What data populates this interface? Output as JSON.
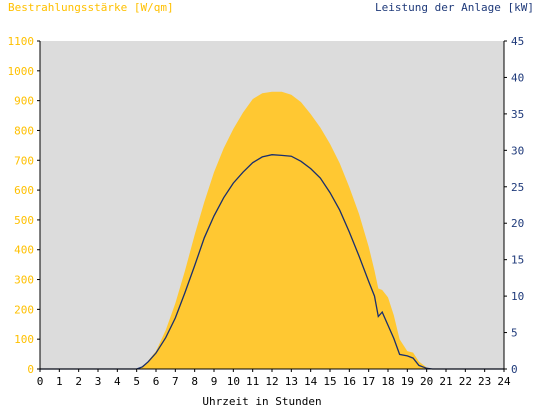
{
  "chart_data": {
    "type": "area",
    "left_axis": {
      "title": "Bestrahlungsstärke [W/qm]",
      "min": 0,
      "max": 1100,
      "step": 100,
      "color": "#ffc000"
    },
    "right_axis": {
      "title": "Leistung der Anlage [kW]",
      "min": 0,
      "max": 45,
      "step": 5,
      "color": "#1f3a7a"
    },
    "x_axis": {
      "title": "Uhrzeit in Stunden",
      "min": 0,
      "max": 24,
      "step": 1
    },
    "grid": false,
    "background_color": "#dcdcdc",
    "series": [
      {
        "axis": "left",
        "style": "area",
        "color": "#ffc832",
        "x": [
          0,
          5.0,
          5.2,
          5.5,
          6.0,
          6.5,
          7.0,
          7.5,
          8.0,
          8.5,
          9.0,
          9.5,
          10.0,
          10.5,
          11.0,
          11.5,
          12.0,
          12.5,
          13.0,
          13.5,
          14.0,
          14.5,
          15.0,
          15.5,
          16.0,
          16.5,
          17.0,
          17.3,
          17.5,
          17.7,
          18.0,
          18.3,
          18.6,
          19.0,
          19.3,
          19.6,
          20.0,
          20.3,
          20.6,
          21.0,
          24
        ],
        "values": [
          0,
          0,
          5,
          20,
          60,
          130,
          220,
          330,
          450,
          560,
          660,
          740,
          805,
          860,
          905,
          925,
          930,
          930,
          920,
          895,
          855,
          810,
          755,
          690,
          610,
          520,
          410,
          330,
          270,
          265,
          240,
          180,
          100,
          60,
          55,
          25,
          5,
          0,
          0,
          0,
          0
        ]
      },
      {
        "axis": "right",
        "style": "line",
        "color": "#1a2f6e",
        "x": [
          0,
          5.0,
          5.3,
          5.6,
          6.0,
          6.5,
          7.0,
          7.5,
          8.0,
          8.5,
          9.0,
          9.5,
          10.0,
          10.5,
          11.0,
          11.5,
          12.0,
          12.5,
          13.0,
          13.5,
          14.0,
          14.5,
          15.0,
          15.5,
          16.0,
          16.5,
          17.0,
          17.3,
          17.5,
          17.7,
          18.0,
          18.3,
          18.6,
          19.0,
          19.3,
          19.6,
          20.0,
          20.3,
          24
        ],
        "values": [
          0,
          0,
          0.3,
          1.0,
          2.2,
          4.3,
          7.0,
          10.5,
          14.2,
          18.0,
          21.0,
          23.5,
          25.5,
          27.0,
          28.3,
          29.1,
          29.4,
          29.3,
          29.2,
          28.5,
          27.5,
          26.2,
          24.2,
          21.8,
          18.8,
          15.5,
          12.0,
          10.0,
          7.2,
          7.8,
          6.0,
          4.2,
          2.0,
          1.8,
          1.5,
          0.5,
          0.1,
          0,
          0
        ]
      }
    ]
  }
}
